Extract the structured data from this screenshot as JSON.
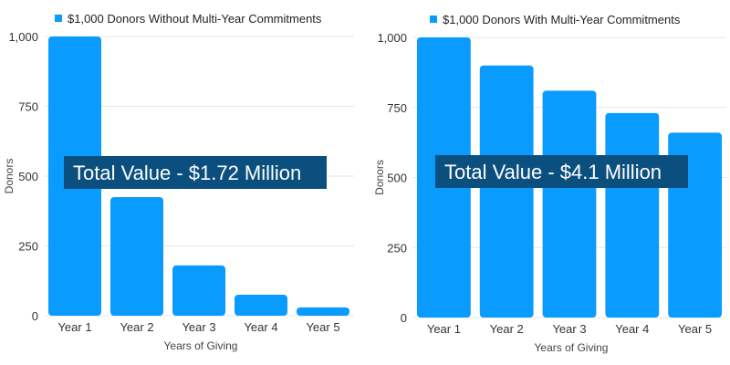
{
  "colors": {
    "bar": "#0A9BFF",
    "overlay_bg": "#0B4F7E",
    "grid": "#e6e6e6"
  },
  "chart_data": [
    {
      "type": "bar",
      "title": "",
      "legend": "$1,000 Donors Without Multi-Year Commitments",
      "legend_position": "top",
      "categories": [
        "Year 1",
        "Year 2",
        "Year 3",
        "Year 4",
        "Year 5"
      ],
      "values": [
        1000,
        425,
        180,
        75,
        30
      ],
      "xlabel": "Years of Giving",
      "ylabel": "Donors",
      "ylim": [
        0,
        1000
      ],
      "yticks": [
        "0",
        "250",
        "500",
        "750",
        "1,000"
      ],
      "grid": true,
      "annotation": "Total Value - $1.72 Million"
    },
    {
      "type": "bar",
      "title": "",
      "legend": "$1,000 Donors With Multi-Year Commitments",
      "legend_position": "top",
      "categories": [
        "Year 1",
        "Year 2",
        "Year 3",
        "Year 4",
        "Year 5"
      ],
      "values": [
        1000,
        900,
        810,
        730,
        660
      ],
      "xlabel": "Years of Giving",
      "ylabel": "Donors",
      "ylim": [
        0,
        1000
      ],
      "yticks": [
        "0",
        "250",
        "500",
        "750",
        "1,000"
      ],
      "grid": true,
      "annotation": "Total Value - $4.1 Million"
    }
  ]
}
